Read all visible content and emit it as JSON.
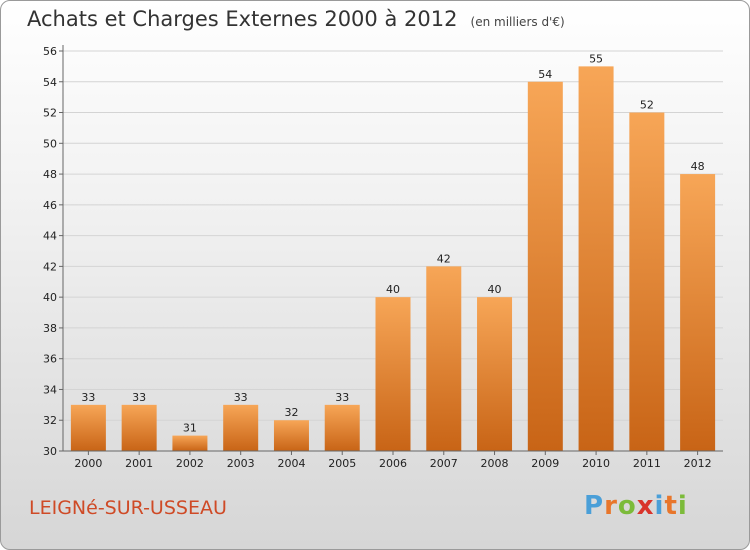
{
  "title": "Achats et Charges Externes 2000 à 2012",
  "unit": "(en milliers d'€)",
  "commune": "LEIGNé-SUR-USSEAU",
  "logo": {
    "text": "Proxiti",
    "letters": [
      "P",
      "r",
      "o",
      "x",
      "i",
      "t",
      "i"
    ],
    "letter_colors": [
      "#4a9fd8",
      "#e8762b",
      "#7cbb3a",
      "#d9342b",
      "#4a9fd8",
      "#e8762b",
      "#7cbb3a"
    ]
  },
  "colors": {
    "bar_top": "#f7a657",
    "bar_bottom": "#c86416",
    "commune": "#cf4a26"
  },
  "chart_data": {
    "type": "bar",
    "title": "Achats et Charges Externes 2000 à 2012",
    "subtitle": "(en milliers d'€)",
    "categories": [
      "2000",
      "2001",
      "2002",
      "2003",
      "2004",
      "2005",
      "2006",
      "2007",
      "2008",
      "2009",
      "2010",
      "2011",
      "2012"
    ],
    "values": [
      33,
      33,
      31,
      33,
      32,
      33,
      40,
      42,
      40,
      54,
      55,
      52,
      48
    ],
    "ylim": [
      30,
      56
    ],
    "yticks": [
      30,
      32,
      34,
      36,
      38,
      40,
      42,
      44,
      46,
      48,
      50,
      52,
      54,
      56
    ],
    "grid": "horizontal",
    "xlabel": "",
    "ylabel": ""
  }
}
